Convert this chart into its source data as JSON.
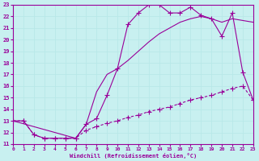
{
  "xlabel": "Windchill (Refroidissement éolien,°C)",
  "bg_color": "#c8f0f0",
  "line_color": "#990099",
  "grid_color": "#b8e8e8",
  "xlim": [
    0,
    23
  ],
  "ylim": [
    11,
    23
  ],
  "xticks": [
    0,
    1,
    2,
    3,
    4,
    5,
    6,
    7,
    8,
    9,
    10,
    11,
    12,
    13,
    14,
    15,
    16,
    17,
    18,
    19,
    20,
    21,
    22,
    23
  ],
  "yticks": [
    11,
    12,
    13,
    14,
    15,
    16,
    17,
    18,
    19,
    20,
    21,
    22,
    23
  ],
  "curve1_x": [
    0,
    1,
    2,
    3,
    4,
    5,
    6,
    7,
    8,
    9,
    10,
    11,
    12,
    13,
    14,
    15,
    16,
    17,
    18,
    19,
    20,
    21,
    22,
    23
  ],
  "curve1_y": [
    13.0,
    13.0,
    11.8,
    11.5,
    11.5,
    11.5,
    11.5,
    12.7,
    13.2,
    15.2,
    17.5,
    21.3,
    22.3,
    23.0,
    23.0,
    22.3,
    22.3,
    22.8,
    22.1,
    21.8,
    20.3,
    22.3,
    17.2,
    14.8
  ],
  "curve2_x": [
    0,
    6,
    7,
    8,
    9,
    10,
    11,
    12,
    13,
    14,
    15,
    16,
    17,
    18,
    19,
    20,
    21,
    23
  ],
  "curve2_y": [
    13.0,
    11.5,
    12.7,
    15.5,
    17.0,
    17.5,
    18.2,
    19.0,
    19.8,
    20.5,
    21.0,
    21.5,
    21.8,
    22.0,
    21.8,
    21.5,
    21.8,
    21.5
  ],
  "curve3_x": [
    0,
    1,
    2,
    3,
    4,
    5,
    6,
    7,
    8,
    9,
    10,
    11,
    12,
    13,
    14,
    15,
    16,
    17,
    18,
    19,
    20,
    21,
    22,
    23
  ],
  "curve3_y": [
    13.0,
    13.0,
    11.8,
    11.5,
    11.5,
    11.5,
    11.5,
    12.2,
    12.5,
    12.8,
    13.0,
    13.3,
    13.5,
    13.8,
    14.0,
    14.2,
    14.5,
    14.8,
    15.0,
    15.2,
    15.5,
    15.8,
    16.0,
    14.8
  ]
}
